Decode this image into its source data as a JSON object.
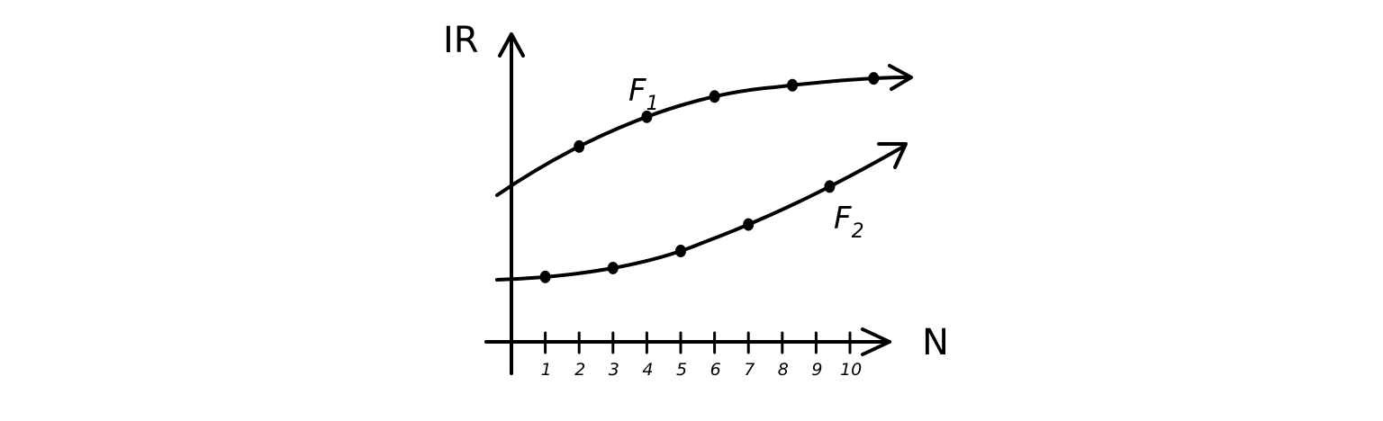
{
  "axes": {
    "y_label": "IR",
    "x_label": "N",
    "x_tick_labels": [
      "1",
      "2",
      "3",
      "4",
      "5",
      "6",
      "7",
      "8",
      "9",
      "10"
    ]
  },
  "curves": [
    {
      "name": "F",
      "subscript": "1",
      "dots_at_x": [
        2,
        4,
        6,
        8.3,
        10.7
      ]
    },
    {
      "name": "F",
      "subscript": "2",
      "dots_at_x": [
        1,
        3,
        5,
        7,
        9.4
      ]
    }
  ],
  "colors": {
    "ink": "#000000",
    "background": "#ffffff"
  }
}
